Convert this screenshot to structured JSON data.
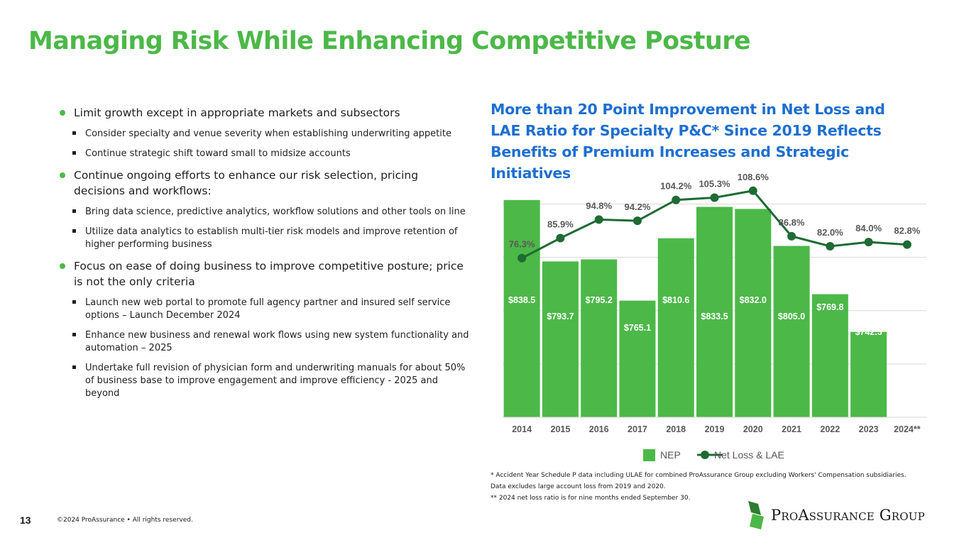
{
  "slide": {
    "title": "Managing Risk While Enhancing Competitive Posture",
    "page_number": "13",
    "copyright": "©2024 ProAssurance • All rights reserved.",
    "logo_text": "ProAssurance Group"
  },
  "bullets": [
    {
      "text": "Limit growth except in appropriate markets and subsectors",
      "subs": [
        "Consider specialty and venue severity when establishing underwriting appetite",
        "Continue strategic shift toward small to midsize accounts"
      ]
    },
    {
      "text": "Continue ongoing efforts to enhance our risk selection, pricing decisions and workflows:",
      "subs": [
        "Bring data science, predictive analytics, workflow solutions and other tools on line",
        "Utilize data analytics to establish multi-tier risk models and improve retention of higher performing business"
      ]
    },
    {
      "text": "Focus on ease of doing business to improve competitive posture; price is not the only criteria",
      "subs": [
        "Launch new web portal to promote full agency partner and insured self service options – Launch December 2024",
        "Enhance new business and renewal work flows using new system functionality and automation – 2025",
        "Undertake full revision of physician form and underwriting manuals for about 50% of business base to improve engagement and improve efficiency - 2025 and beyond"
      ]
    }
  ],
  "chart_heading": "More than 20 Point Improvement in Net Loss and LAE Ratio for Specialty P&C* Since 2019 Reflects Benefits of Premium Increases and Strategic Initiatives",
  "footnotes": [
    "* Accident Year Schedule P data including ULAE for combined ProAssurance Group excluding Workers' Compensation subsidiaries.  Data excludes large account loss from 2019 and 2020.",
    "** 2024 net loss ratio is for nine months ended September 30."
  ],
  "colors": {
    "bar": "#4cb848",
    "line": "#1e6b34",
    "title_green": "#4cb848",
    "heading_blue": "#1e6fd0"
  },
  "chart_data": {
    "type": "bar",
    "categories": [
      "2014",
      "2015",
      "2016",
      "2017",
      "2018",
      "2019",
      "2020",
      "2021",
      "2022",
      "2023",
      "2024**"
    ],
    "series": [
      {
        "name": "NEP",
        "kind": "bar",
        "values": [
          838.5,
          793.7,
          795.2,
          765.1,
          810.6,
          833.5,
          832.0,
          805.0,
          769.8,
          742.3,
          null
        ],
        "labels": [
          "$838.5",
          "$793.7",
          "$795.2",
          "$765.1",
          "$810.6",
          "$833.5",
          "$832.0",
          "$805.0",
          "$769.8",
          "$742.3",
          ""
        ]
      },
      {
        "name": "Net Loss & LAE",
        "kind": "line",
        "values": [
          76.3,
          85.9,
          94.8,
          94.2,
          104.2,
          105.3,
          108.6,
          86.8,
          82.0,
          84.0,
          82.8
        ],
        "labels": [
          "76.3%",
          "85.9%",
          "94.8%",
          "94.2%",
          "104.2%",
          "105.3%",
          "108.6%",
          "86.8%",
          "82.0%",
          "84.0%",
          "82.8%"
        ]
      }
    ],
    "bar_axis_range": [
      680,
      855
    ],
    "line_axis_range": [
      0,
      115
    ],
    "grid": true,
    "legend_position": "bottom"
  }
}
